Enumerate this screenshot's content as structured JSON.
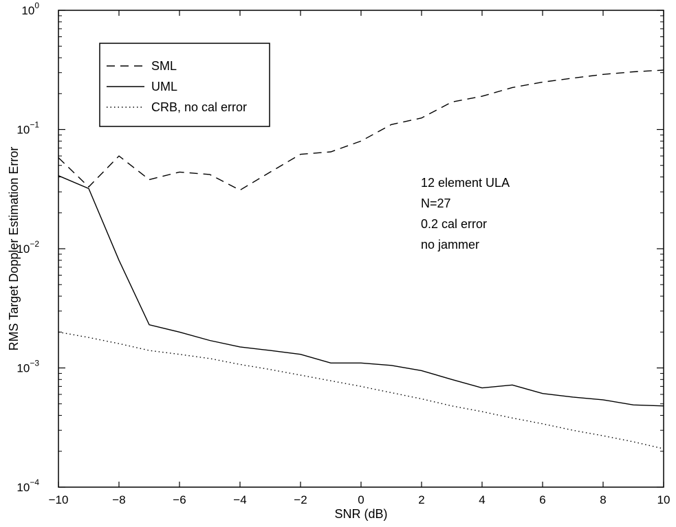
{
  "chart_data": {
    "type": "line",
    "title": "",
    "xlabel": "SNR (dB)",
    "ylabel": "RMS Target Doppler Estimation Error",
    "xlim": [
      -10,
      10
    ],
    "ylim": [
      0.0001,
      1
    ],
    "yscale": "log",
    "grid": false,
    "legend_position": "top-left",
    "x_ticks": [
      -10,
      -8,
      -6,
      -4,
      -2,
      0,
      2,
      4,
      6,
      8,
      10
    ],
    "x_tick_labels": [
      "−10",
      "−8",
      "−6",
      "−4",
      "−2",
      "0",
      "2",
      "4",
      "6",
      "8",
      "10"
    ],
    "y_ticks": [
      {
        "value": 1,
        "base": "10",
        "exp": "0"
      },
      {
        "value": 0.1,
        "base": "10",
        "exp": "−1"
      },
      {
        "value": 0.01,
        "base": "10",
        "exp": "−2"
      },
      {
        "value": 0.001,
        "base": "10",
        "exp": "−3"
      },
      {
        "value": 0.0001,
        "base": "10",
        "exp": "−4"
      }
    ],
    "x": [
      -10,
      -9,
      -8,
      -7,
      -6,
      -5,
      -4,
      -3,
      -2,
      -1,
      0,
      1,
      2,
      3,
      4,
      5,
      6,
      7,
      8,
      9,
      10
    ],
    "series": [
      {
        "name": "SML",
        "style": "dashed",
        "values": [
          0.058,
          0.033,
          0.06,
          0.038,
          0.044,
          0.042,
          0.031,
          0.044,
          0.062,
          0.065,
          0.08,
          0.11,
          0.125,
          0.17,
          0.19,
          0.225,
          0.25,
          0.27,
          0.29,
          0.305,
          0.315
        ]
      },
      {
        "name": "UML",
        "style": "solid",
        "values": [
          0.041,
          0.032,
          0.008,
          0.0023,
          0.002,
          0.0017,
          0.0015,
          0.0014,
          0.0013,
          0.0011,
          0.0011,
          0.00105,
          0.00095,
          0.0008,
          0.00068,
          0.00072,
          0.00061,
          0.00057,
          0.00054,
          0.00049,
          0.00048
        ]
      },
      {
        "name": "CRB, no cal error",
        "style": "dotted",
        "values": [
          0.002,
          0.0018,
          0.0016,
          0.0014,
          0.0013,
          0.0012,
          0.00107,
          0.00097,
          0.00087,
          0.00078,
          0.0007,
          0.00062,
          0.00055,
          0.00048,
          0.00043,
          0.00038,
          0.00034,
          0.0003,
          0.00027,
          0.00024,
          0.00021
        ]
      }
    ],
    "annotations": [
      "12 element ULA",
      "N=27",
      "0.2 cal error",
      "no jammer"
    ]
  }
}
